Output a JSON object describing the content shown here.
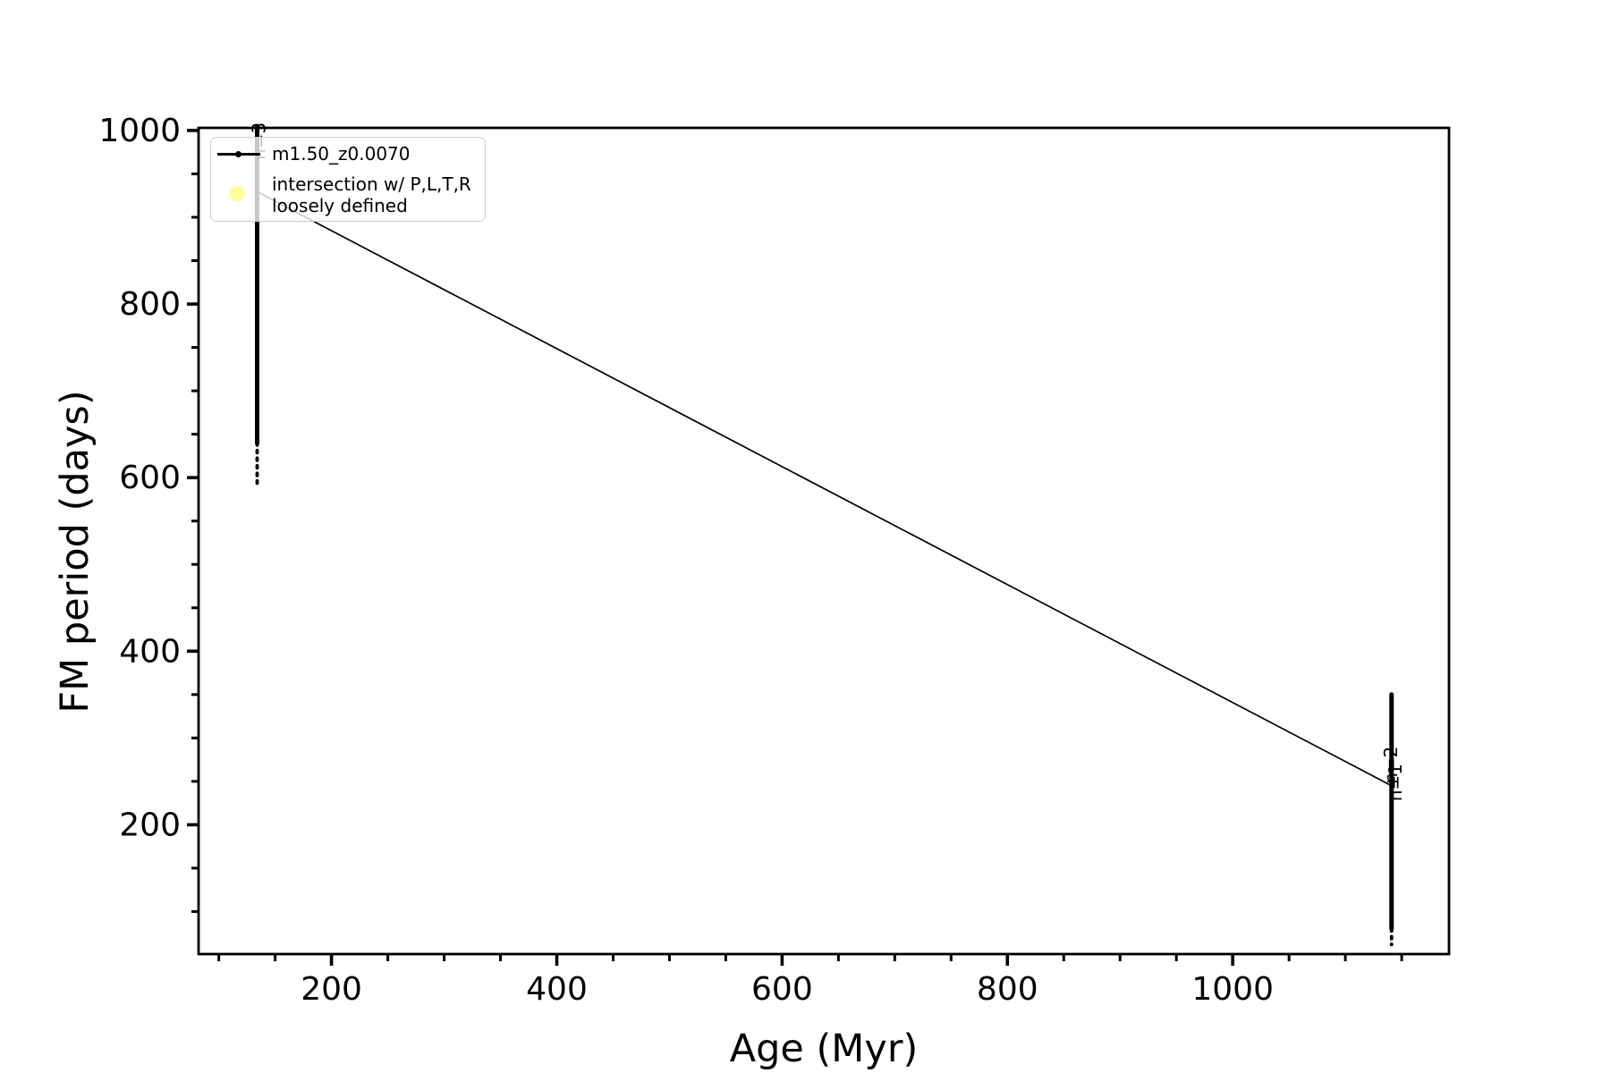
{
  "chart_data": {
    "type": "line",
    "title": "",
    "xlabel": "Age (Myr)",
    "ylabel": "FM period (days)",
    "xlim": [
      82,
      1192
    ],
    "ylim": [
      51,
      1003
    ],
    "xticks": [
      200,
      400,
      600,
      800,
      1000
    ],
    "yticks": [
      200,
      400,
      600,
      800,
      1000
    ],
    "minor_tick_step": 50,
    "grid": false,
    "axis_color": "#000000",
    "background": "#ffffff",
    "series": [
      {
        "name": "m1.50_z0.0070",
        "color": "#000000",
        "marker": "point",
        "segments": [
          {
            "kind": "dense-vertical",
            "x": 134,
            "y_from": 1005,
            "y_to": 640,
            "note": "dense track of points at fixed age ~134 Myr, periods 640-1000+ days"
          },
          {
            "kind": "sparse-vertical",
            "x": 134,
            "y_from": 640,
            "y_to": 588,
            "note": "scattered points down to ~590 days"
          },
          {
            "kind": "line",
            "from": [
              136,
              928
            ],
            "to": [
              1141,
              245
            ],
            "note": "long declining branch from (~136 Myr, ~930 d) to (~1141 Myr, ~245 d)"
          },
          {
            "kind": "dense-vertical",
            "x": 1141,
            "y_from": 350,
            "y_to": 80,
            "note": "dense track at ~1141 Myr, periods 80-350 days"
          },
          {
            "kind": "sparse-vertical",
            "x": 1141,
            "y_from": 80,
            "y_to": 62,
            "note": "scattered points down to ~62 days"
          }
        ]
      }
    ],
    "annotations": [
      {
        "text": "n=3",
        "x": 141,
        "y": 966,
        "rotation": 90
      },
      {
        "text": "n=2",
        "x": 1146,
        "y": 247,
        "rotation": 90
      },
      {
        "text": "n=1",
        "x": 1150,
        "y": 227,
        "rotation": 90
      }
    ],
    "legend": {
      "position": "upper left",
      "entries": [
        {
          "label_lines": [
            "m1.50_z0.0070"
          ],
          "marker": "line-with-dot",
          "color": "#000000"
        },
        {
          "label_lines": [
            "intersection w/ P,L,T,R",
            "loosely defined"
          ],
          "marker": "circle",
          "color": "rgba(255,255,0,0.4)"
        }
      ]
    }
  }
}
